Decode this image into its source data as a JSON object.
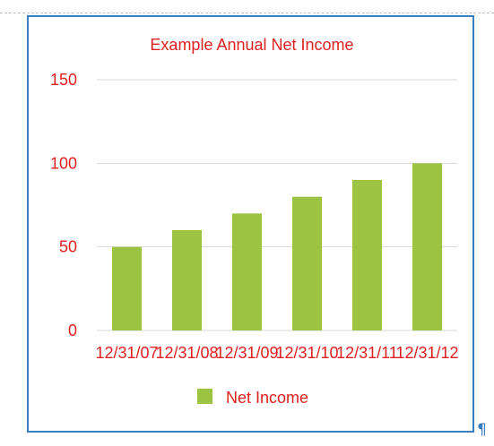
{
  "chart_data": {
    "type": "bar",
    "title": "Example Annual Net Income",
    "categories": [
      "12/31/07",
      "12/31/08",
      "12/31/09",
      "12/31/10",
      "12/31/11",
      "12/31/12"
    ],
    "series": [
      {
        "name": "Net Income",
        "values": [
          50,
          60,
          70,
          80,
          90,
          100
        ]
      }
    ],
    "yticks": [
      "0",
      "50",
      "100",
      "150"
    ],
    "ylim": [
      0,
      150
    ],
    "grid": true,
    "legend": "bottom",
    "colors": {
      "bar": "#9dc343",
      "text": "#e02020",
      "frame": "#3c7fc1"
    }
  },
  "document": {
    "paragraph_mark": "¶"
  }
}
